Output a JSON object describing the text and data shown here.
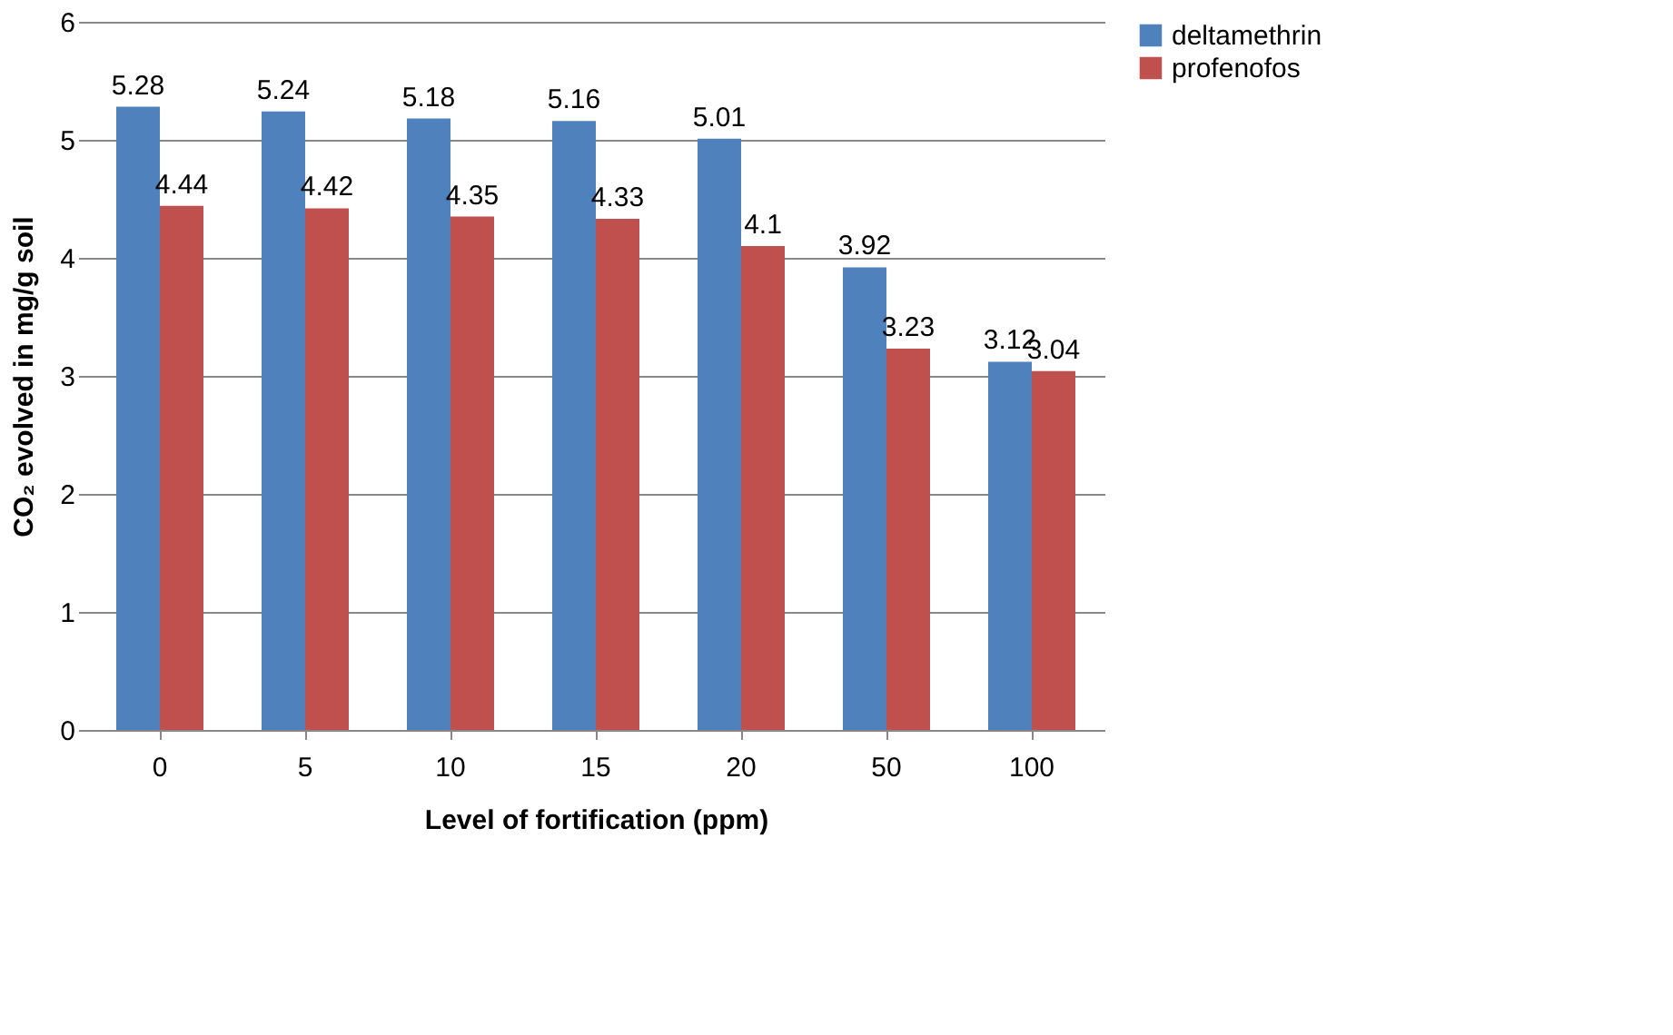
{
  "chart_data": {
    "type": "bar",
    "xlabel": "Level of fortification (ppm)",
    "ylabel": "CO₂ evolved in mg/g soil",
    "categories": [
      "0",
      "5",
      "10",
      "15",
      "20",
      "50",
      "100"
    ],
    "series": [
      {
        "name": "deltamethrin",
        "color": "#4f81bd",
        "values": [
          5.28,
          5.24,
          5.18,
          5.16,
          5.01,
          3.92,
          3.12
        ]
      },
      {
        "name": "profenofos",
        "color": "#c0504d",
        "values": [
          4.44,
          4.42,
          4.35,
          4.33,
          4.1,
          3.23,
          3.04
        ]
      }
    ],
    "ylim": [
      0,
      6
    ],
    "yticks": [
      0,
      1,
      2,
      3,
      4,
      5,
      6
    ],
    "grid": "y",
    "legend": "right",
    "data_labels": true
  }
}
